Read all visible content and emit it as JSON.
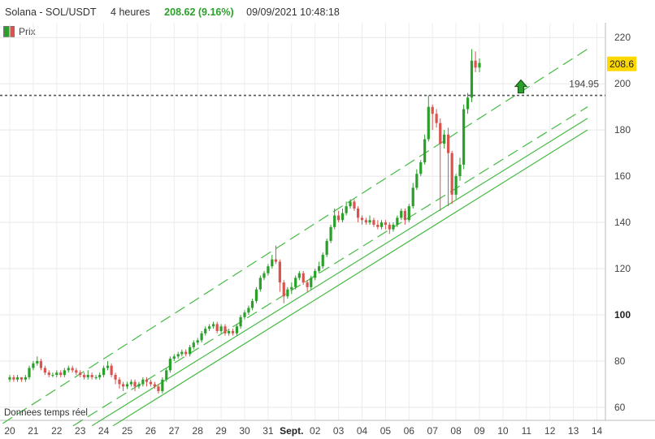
{
  "header": {
    "instrument": "Solana - SOL/USDT",
    "timeframe": "4 heures",
    "price_change": "208.62 (9.16%)",
    "datetime": "09/09/2021 10:48:18"
  },
  "legend_label": "Prix",
  "footer_note": "Donnees temps réel",
  "colors": {
    "up": "#2aa02a",
    "down": "#d9534f",
    "trend": "#44bb44",
    "price_tag": "#ffd800"
  },
  "chart_data": {
    "type": "candlestick",
    "title": "Solana - SOL/USDT",
    "ylim": [
      55,
      225
    ],
    "y_ticks": [
      60,
      80,
      100,
      120,
      140,
      160,
      180,
      200,
      220
    ],
    "x_ticks": [
      "20",
      "21",
      "22",
      "23",
      "24",
      "25",
      "26",
      "27",
      "28",
      "29",
      "30",
      "31",
      "Sept.",
      "02",
      "03",
      "04",
      "05",
      "06",
      "07",
      "08",
      "09",
      "10",
      "11",
      "12",
      "13",
      "14"
    ],
    "bold_x_tick": "Sept.",
    "bold_y_tick": "100",
    "last_price_label": "208.6",
    "level_label": "194.95",
    "level_value": 194.95,
    "grid": true,
    "candles": [
      [
        0.0,
        72,
        73,
        71,
        74
      ],
      [
        0.17,
        73,
        72,
        71,
        74
      ],
      [
        0.33,
        72,
        73,
        71,
        74
      ],
      [
        0.5,
        73,
        72,
        71,
        73
      ],
      [
        0.67,
        72,
        73,
        71,
        74
      ],
      [
        0.83,
        73,
        77,
        72,
        78
      ],
      [
        1.0,
        77,
        79,
        76,
        80
      ],
      [
        1.17,
        79,
        80,
        78,
        82
      ],
      [
        1.33,
        80,
        77,
        76,
        81
      ],
      [
        1.5,
        77,
        75,
        74,
        78
      ],
      [
        1.67,
        75,
        74,
        73,
        76
      ],
      [
        1.83,
        74,
        74,
        73,
        75
      ],
      [
        2.0,
        74,
        75,
        73,
        76
      ],
      [
        2.17,
        75,
        74,
        73,
        76
      ],
      [
        2.33,
        74,
        76,
        73,
        77
      ],
      [
        2.5,
        76,
        77,
        75,
        78
      ],
      [
        2.67,
        77,
        76,
        75,
        78
      ],
      [
        2.83,
        76,
        75,
        74,
        77
      ],
      [
        3.0,
        75,
        74,
        73,
        76
      ],
      [
        3.17,
        74,
        73,
        72,
        75
      ],
      [
        3.33,
        73,
        74,
        72,
        76
      ],
      [
        3.5,
        74,
        73,
        72,
        75
      ],
      [
        3.67,
        73,
        73,
        72,
        74
      ],
      [
        3.83,
        73,
        74,
        72,
        75
      ],
      [
        4.0,
        74,
        77,
        73,
        78
      ],
      [
        4.17,
        77,
        78,
        76,
        80
      ],
      [
        4.33,
        78,
        74,
        73,
        79
      ],
      [
        4.5,
        74,
        72,
        70,
        75
      ],
      [
        4.67,
        72,
        70,
        68,
        73
      ],
      [
        4.83,
        70,
        69,
        67,
        71
      ],
      [
        5.0,
        69,
        70,
        68,
        71
      ],
      [
        5.17,
        70,
        71,
        69,
        72
      ],
      [
        5.33,
        71,
        69,
        67,
        72
      ],
      [
        5.5,
        69,
        70,
        68,
        71
      ],
      [
        5.67,
        70,
        72,
        69,
        73
      ],
      [
        5.83,
        72,
        71,
        69,
        73
      ],
      [
        6.0,
        71,
        70,
        69,
        72
      ],
      [
        6.17,
        70,
        69,
        68,
        71
      ],
      [
        6.33,
        69,
        67,
        66,
        70
      ],
      [
        6.5,
        67,
        72,
        66,
        73
      ],
      [
        6.67,
        72,
        76,
        71,
        77
      ],
      [
        6.83,
        76,
        81,
        75,
        82
      ],
      [
        7.0,
        81,
        82,
        80,
        83
      ],
      [
        7.17,
        82,
        83,
        81,
        84
      ],
      [
        7.33,
        83,
        84,
        82,
        85
      ],
      [
        7.5,
        84,
        83,
        82,
        85
      ],
      [
        7.67,
        83,
        86,
        82,
        87
      ],
      [
        7.83,
        86,
        88,
        85,
        89
      ],
      [
        8.0,
        88,
        89,
        87,
        90
      ],
      [
        8.17,
        89,
        92,
        88,
        93
      ],
      [
        8.33,
        92,
        94,
        91,
        95
      ],
      [
        8.5,
        94,
        95,
        93,
        96
      ],
      [
        8.67,
        95,
        96,
        94,
        97
      ],
      [
        8.83,
        96,
        93,
        92,
        97
      ],
      [
        9.0,
        93,
        95,
        92,
        96
      ],
      [
        9.17,
        95,
        92,
        91,
        96
      ],
      [
        9.33,
        92,
        93,
        91,
        94
      ],
      [
        9.5,
        93,
        92,
        91,
        94
      ],
      [
        9.67,
        92,
        95,
        91,
        96
      ],
      [
        9.83,
        95,
        99,
        94,
        100
      ],
      [
        10.0,
        99,
        101,
        98,
        102
      ],
      [
        10.17,
        101,
        103,
        100,
        104
      ],
      [
        10.33,
        103,
        106,
        102,
        107
      ],
      [
        10.5,
        106,
        111,
        105,
        112
      ],
      [
        10.67,
        111,
        116,
        110,
        117
      ],
      [
        10.83,
        116,
        118,
        115,
        119
      ],
      [
        11.0,
        118,
        121,
        117,
        122
      ],
      [
        11.17,
        121,
        124,
        120,
        126
      ],
      [
        11.33,
        124,
        123,
        122,
        130
      ],
      [
        11.5,
        123,
        114,
        110,
        124
      ],
      [
        11.67,
        114,
        108,
        105,
        115
      ],
      [
        11.83,
        108,
        111,
        107,
        112
      ],
      [
        12.0,
        111,
        112,
        109,
        114
      ],
      [
        12.17,
        112,
        116,
        111,
        117
      ],
      [
        12.33,
        116,
        118,
        115,
        119
      ],
      [
        12.5,
        118,
        114,
        113,
        119
      ],
      [
        12.67,
        114,
        112,
        110,
        115
      ],
      [
        12.83,
        112,
        116,
        111,
        117
      ],
      [
        13.0,
        116,
        119,
        115,
        120
      ],
      [
        13.17,
        119,
        121,
        118,
        123
      ],
      [
        13.33,
        121,
        126,
        120,
        127
      ],
      [
        13.5,
        126,
        132,
        125,
        133
      ],
      [
        13.67,
        132,
        138,
        131,
        139
      ],
      [
        13.83,
        138,
        143,
        137,
        146
      ],
      [
        14.0,
        143,
        141,
        140,
        145
      ],
      [
        14.17,
        141,
        144,
        140,
        146
      ],
      [
        14.33,
        144,
        147,
        143,
        149
      ],
      [
        14.5,
        147,
        149,
        146,
        150
      ],
      [
        14.67,
        149,
        146,
        145,
        150
      ],
      [
        14.83,
        146,
        142,
        140,
        147
      ],
      [
        15.0,
        142,
        141,
        139,
        143
      ],
      [
        15.17,
        141,
        140,
        139,
        142
      ],
      [
        15.33,
        140,
        141,
        139,
        143
      ],
      [
        15.5,
        141,
        139,
        138,
        142
      ],
      [
        15.67,
        139,
        138,
        137,
        141
      ],
      [
        15.83,
        138,
        140,
        137,
        141
      ],
      [
        16.0,
        140,
        139,
        137,
        141
      ],
      [
        16.17,
        139,
        137,
        135,
        140
      ],
      [
        16.33,
        137,
        139,
        136,
        140
      ],
      [
        16.5,
        139,
        142,
        138,
        143
      ],
      [
        16.67,
        142,
        145,
        141,
        146
      ],
      [
        16.83,
        145,
        141,
        139,
        146
      ],
      [
        17.0,
        141,
        147,
        140,
        148
      ],
      [
        17.17,
        147,
        155,
        146,
        157
      ],
      [
        17.33,
        155,
        161,
        154,
        163
      ],
      [
        17.5,
        161,
        166,
        160,
        167
      ],
      [
        17.67,
        166,
        176,
        165,
        178
      ],
      [
        17.83,
        176,
        190,
        175,
        195
      ],
      [
        18.0,
        190,
        187,
        180,
        191
      ],
      [
        18.17,
        187,
        183,
        181,
        189
      ],
      [
        18.33,
        183,
        174,
        145,
        185
      ],
      [
        18.5,
        174,
        178,
        172,
        180
      ],
      [
        18.67,
        178,
        170,
        147,
        181
      ],
      [
        18.83,
        170,
        152,
        148,
        171
      ],
      [
        19.0,
        152,
        160,
        150,
        161
      ],
      [
        19.17,
        160,
        165,
        158,
        168
      ],
      [
        19.33,
        165,
        189,
        163,
        191
      ],
      [
        19.5,
        189,
        194,
        187,
        196
      ],
      [
        19.67,
        194,
        210,
        192,
        215
      ],
      [
        19.83,
        210,
        207,
        205,
        214
      ],
      [
        20.0,
        207,
        209,
        205,
        211
      ]
    ],
    "trend_lines": [
      {
        "style": "dashed",
        "from": [
          -0.3,
          53
        ],
        "to": [
          24.6,
          215
        ]
      },
      {
        "style": "dashed",
        "from": [
          2.7,
          52
        ],
        "to": [
          24.6,
          190
        ]
      },
      {
        "style": "solid",
        "from": [
          3.5,
          52
        ],
        "to": [
          24.6,
          185
        ]
      },
      {
        "style": "solid",
        "from": [
          4.4,
          52
        ],
        "to": [
          24.6,
          180
        ]
      }
    ]
  }
}
